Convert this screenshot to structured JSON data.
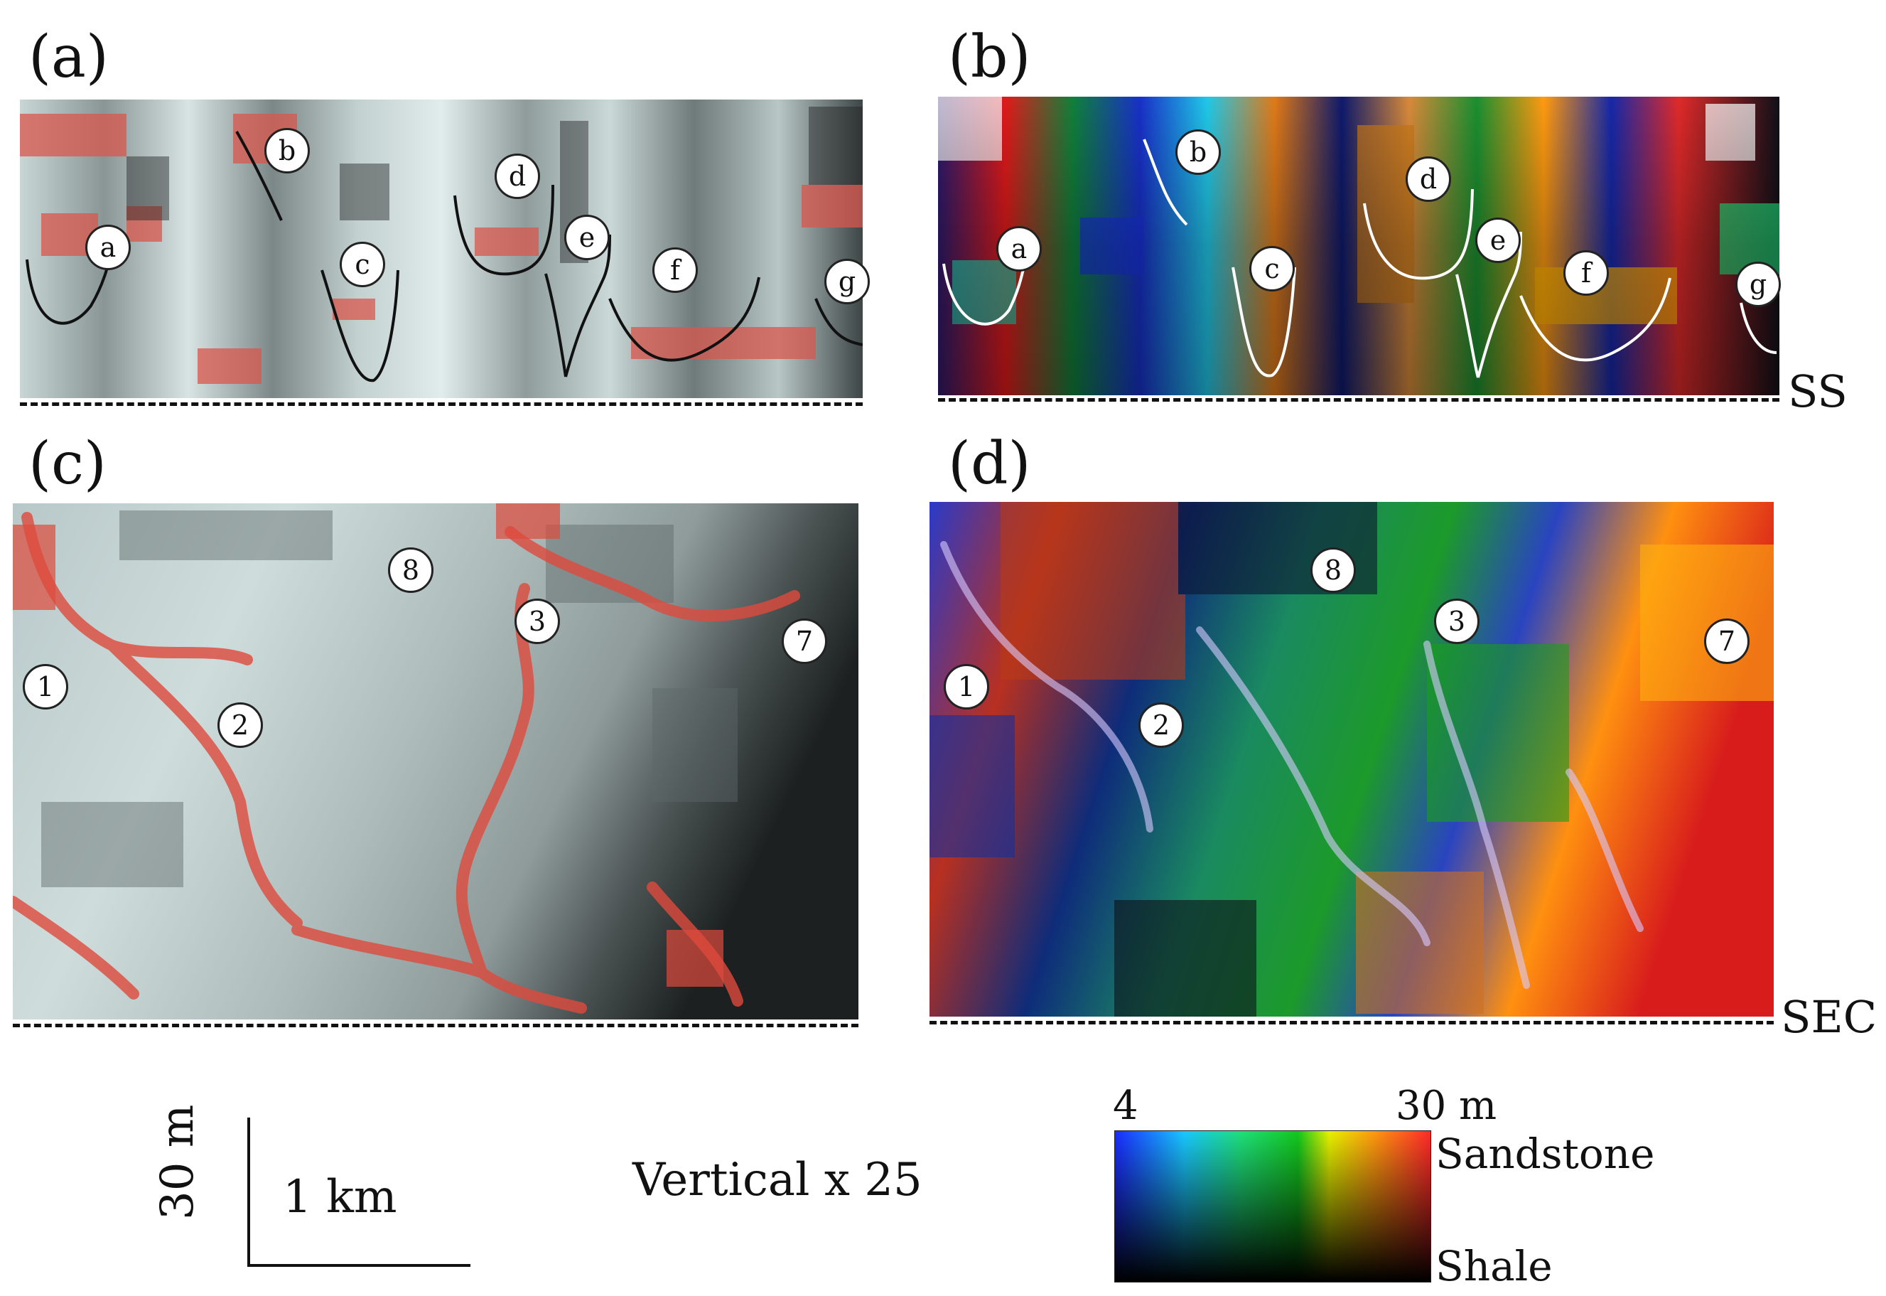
{
  "panels": [
    {
      "label": "(a)"
    },
    {
      "label": "(b)"
    },
    {
      "label": "(c)"
    },
    {
      "label": "(d)"
    }
  ],
  "section_labels": {
    "ss": "SS",
    "sec": "SEC"
  },
  "channel_markers_top": [
    "a",
    "b",
    "c",
    "d",
    "e",
    "f",
    "g"
  ],
  "channel_markers_bottom": [
    "1",
    "2",
    "3",
    "7",
    "8"
  ],
  "scale_bar": {
    "vertical": "30 m",
    "horizontal": "1 km"
  },
  "exaggeration": "Vertical x 25",
  "colorbar": {
    "min_label": "4",
    "max_label": "30 m",
    "top_label": "Sandstone",
    "bottom_label": "Shale",
    "colors": [
      "#1a2cff",
      "#19c8ff",
      "#1fe07a",
      "#14c81e",
      "#e8f200",
      "#ff9a10",
      "#ff2a2a"
    ]
  }
}
